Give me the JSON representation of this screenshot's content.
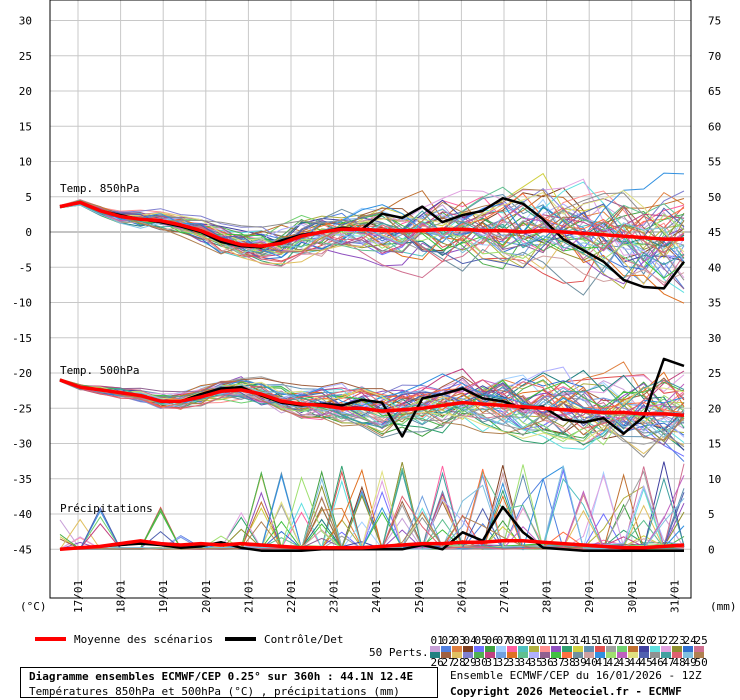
{
  "chart_data": {
    "type": "line",
    "left_unit": "(°C)",
    "right_unit": "(mm)",
    "left_ticks": [
      30,
      25,
      20,
      15,
      10,
      5,
      0,
      -5,
      -10,
      -15,
      -20,
      -25,
      -30,
      -35,
      -40,
      -45
    ],
    "right_ticks": [
      75,
      70,
      65,
      60,
      55,
      50,
      45,
      40,
      35,
      30,
      25,
      20,
      15,
      10,
      5,
      0
    ],
    "x_ticks": [
      "17/01",
      "18/01",
      "19/01",
      "20/01",
      "21/01",
      "22/01",
      "23/01",
      "24/01",
      "25/01",
      "26/01",
      "27/01",
      "28/01",
      "29/01",
      "30/01",
      "31/01"
    ],
    "panel_labels": {
      "t850": "Temp. 850hPa",
      "t500": "Temp. 500hPa",
      "precip": "Précipitations"
    },
    "legend": {
      "mean_label": "Moyenne des scénarios",
      "mean_color": "#ff0000",
      "control_label": "Contrôle/Det",
      "control_color": "#000000",
      "perts_label": "50 Perts.",
      "row1": [
        "01",
        "02",
        "03",
        "04",
        "05",
        "06",
        "07",
        "08",
        "09",
        "10",
        "11",
        "12",
        "13",
        "14",
        "15",
        "16",
        "17",
        "18",
        "19",
        "20",
        "21",
        "22",
        "23",
        "24",
        "25"
      ],
      "row2": [
        "26",
        "27",
        "28",
        "29",
        "30",
        "31",
        "32",
        "33",
        "34",
        "35",
        "36",
        "37",
        "38",
        "39",
        "40",
        "41",
        "42",
        "43",
        "44",
        "45",
        "46",
        "47",
        "48",
        "49",
        "50"
      ]
    },
    "series": {
      "t850_mean": [
        3.6,
        4.2,
        3.0,
        2.2,
        1.8,
        1.6,
        1.0,
        0.2,
        -1.0,
        -1.8,
        -2.0,
        -1.6,
        -0.6,
        0.0,
        0.4,
        0.4,
        0.2,
        0.2,
        0.2,
        0.4,
        0.4,
        0.2,
        0.2,
        0.0,
        0.2,
        0.0,
        -0.2,
        -0.4,
        -0.6,
        -0.8,
        -1.0,
        -1.0
      ],
      "t850_control": [
        3.6,
        4.2,
        3.0,
        2.4,
        1.8,
        1.4,
        0.8,
        0.0,
        -1.4,
        -2.0,
        -2.2,
        -1.2,
        -0.4,
        0.0,
        0.6,
        0.4,
        2.6,
        2.0,
        3.6,
        1.4,
        2.4,
        3.0,
        4.8,
        4.0,
        1.8,
        -1.0,
        -2.6,
        -4.2,
        -6.8,
        -7.8,
        -8.0,
        -4.2
      ],
      "t500_mean": [
        -21.0,
        -22.0,
        -22.4,
        -22.8,
        -23.2,
        -24.0,
        -24.0,
        -23.4,
        -22.6,
        -22.4,
        -23.0,
        -24.0,
        -24.4,
        -24.6,
        -25.0,
        -25.0,
        -25.4,
        -25.2,
        -25.0,
        -24.6,
        -24.2,
        -24.4,
        -24.6,
        -24.8,
        -25.0,
        -25.2,
        -25.4,
        -25.6,
        -25.6,
        -25.8,
        -25.8,
        -26.0
      ],
      "t500_control": [
        -21.0,
        -22.0,
        -22.4,
        -22.8,
        -23.2,
        -24.0,
        -24.0,
        -23.0,
        -22.2,
        -22.0,
        -23.2,
        -24.2,
        -24.6,
        -24.4,
        -24.6,
        -23.8,
        -24.2,
        -29.0,
        -23.6,
        -23.0,
        -22.2,
        -23.6,
        -24.0,
        -25.0,
        -24.8,
        -26.6,
        -27.0,
        -26.4,
        -28.6,
        -26.2,
        -18.0,
        -19.0
      ],
      "precip_mean": [
        0.0,
        0.2,
        0.4,
        0.8,
        1.2,
        0.8,
        0.6,
        0.8,
        0.6,
        0.8,
        0.6,
        0.4,
        0.2,
        0.2,
        0.2,
        0.2,
        0.4,
        0.6,
        0.8,
        0.8,
        1.0,
        1.0,
        1.2,
        1.2,
        1.0,
        0.8,
        0.6,
        0.4,
        0.2,
        0.2,
        0.4,
        0.6
      ],
      "precip_control": [
        0.0,
        0.2,
        0.4,
        0.6,
        0.8,
        0.6,
        0.2,
        0.4,
        1.0,
        0.2,
        -0.2,
        -0.2,
        -0.2,
        0.0,
        0.0,
        0.0,
        0.0,
        0.0,
        0.6,
        0.0,
        2.4,
        1.2,
        6.0,
        2.4,
        0.2,
        0.0,
        -0.2,
        -0.2,
        -0.2,
        -0.2,
        -0.2,
        -0.2
      ]
    }
  },
  "footer": {
    "title": "Diagramme ensembles ECMWF/CEP 0.25° sur 360h : 44.1N 12.4E",
    "subtitle": "Températures 850hPa et 500hPa (°C) , précipitations (mm)",
    "run": "Ensemble ECMWF/CEP du 16/01/2026 - 12Z",
    "copyright": "Copyright 2026 Meteociel.fr - ECMWF"
  }
}
